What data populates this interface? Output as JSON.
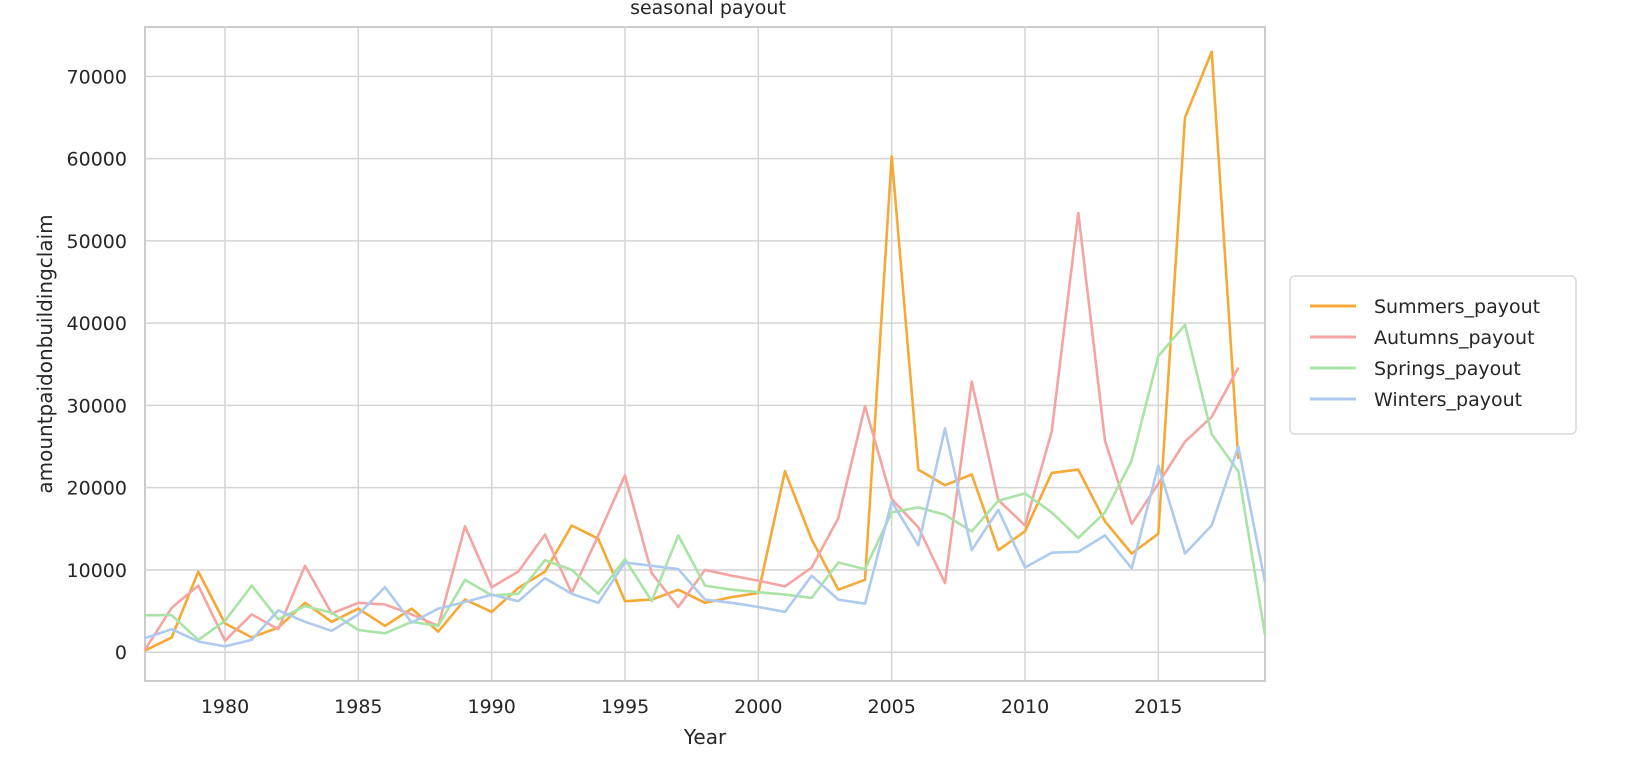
{
  "chart_data": {
    "type": "line",
    "title": "seasonal payout",
    "xlabel": "Year",
    "ylabel": "amountpaidonbuildingclaim",
    "xlim": [
      1977,
      2019
    ],
    "ylim": [
      -3500,
      76000
    ],
    "xticks": [
      1980,
      1985,
      1990,
      1995,
      2000,
      2005,
      2010,
      2015
    ],
    "yticks": [
      0,
      10000,
      20000,
      30000,
      40000,
      50000,
      60000,
      70000
    ],
    "grid": true,
    "legend_position": "right-outside",
    "x": [
      1977,
      1978,
      1979,
      1980,
      1981,
      1982,
      1983,
      1984,
      1985,
      1986,
      1987,
      1988,
      1989,
      1990,
      1991,
      1992,
      1993,
      1994,
      1995,
      1996,
      1997,
      1998,
      1999,
      2000,
      2001,
      2002,
      2003,
      2004,
      2005,
      2006,
      2007,
      2008,
      2009,
      2010,
      2011,
      2012,
      2013,
      2014,
      2015,
      2016,
      2017,
      2018,
      2019
    ],
    "series": [
      {
        "name": "Summers_payout",
        "color": "#f5a937",
        "values": [
          200,
          1800,
          9800,
          3500,
          1800,
          3000,
          6000,
          3700,
          5300,
          3200,
          5300,
          2500,
          6400,
          4900,
          7800,
          9800,
          15400,
          13800,
          6200,
          6400,
          7600,
          6000,
          6700,
          7200,
          22000,
          13700,
          7600,
          8800,
          60300,
          22200,
          20300,
          21600,
          12400,
          14700,
          21800,
          22200,
          15900,
          12000,
          14400,
          65000,
          73000,
          23500,
          null
        ]
      },
      {
        "name": "Autumns_payout",
        "color": "#f4a5a1",
        "values": [
          300,
          5400,
          8100,
          1400,
          4600,
          2800,
          10500,
          4700,
          6000,
          5800,
          4600,
          3200,
          15300,
          7900,
          9800,
          14300,
          7200,
          14200,
          21500,
          9600,
          5500,
          10000,
          9300,
          8700,
          8000,
          10300,
          16300,
          29900,
          18600,
          15200,
          8400,
          32900,
          18500,
          15400,
          26800,
          53400,
          25700,
          15600,
          20500,
          25600,
          28600,
          34600,
          null
        ]
      },
      {
        "name": "Springs_payout",
        "color": "#a9e3a5",
        "values": [
          4500,
          4500,
          1500,
          3800,
          8100,
          4000,
          5600,
          4800,
          2700,
          2300,
          3700,
          3200,
          8800,
          6900,
          7100,
          11200,
          10000,
          7100,
          11300,
          6200,
          14200,
          8100,
          7600,
          7300,
          7000,
          6600,
          10900,
          10100,
          17000,
          17600,
          16700,
          14700,
          18400,
          19300,
          17000,
          13900,
          17000,
          23300,
          36000,
          39800,
          26500,
          22000,
          2100
        ]
      },
      {
        "name": "Winters_payout",
        "color": "#aecbef",
        "values": [
          1700,
          2800,
          1300,
          700,
          1500,
          5100,
          3700,
          2600,
          4600,
          7900,
          3600,
          5300,
          6100,
          7000,
          6200,
          9000,
          7100,
          6000,
          10900,
          10500,
          10100,
          6400,
          6000,
          5500,
          4900,
          9300,
          6400,
          5900,
          18300,
          13000,
          27200,
          12400,
          17300,
          10300,
          12100,
          12200,
          14200,
          10200,
          22700,
          12000,
          15400,
          25000,
          8500
        ]
      }
    ]
  }
}
